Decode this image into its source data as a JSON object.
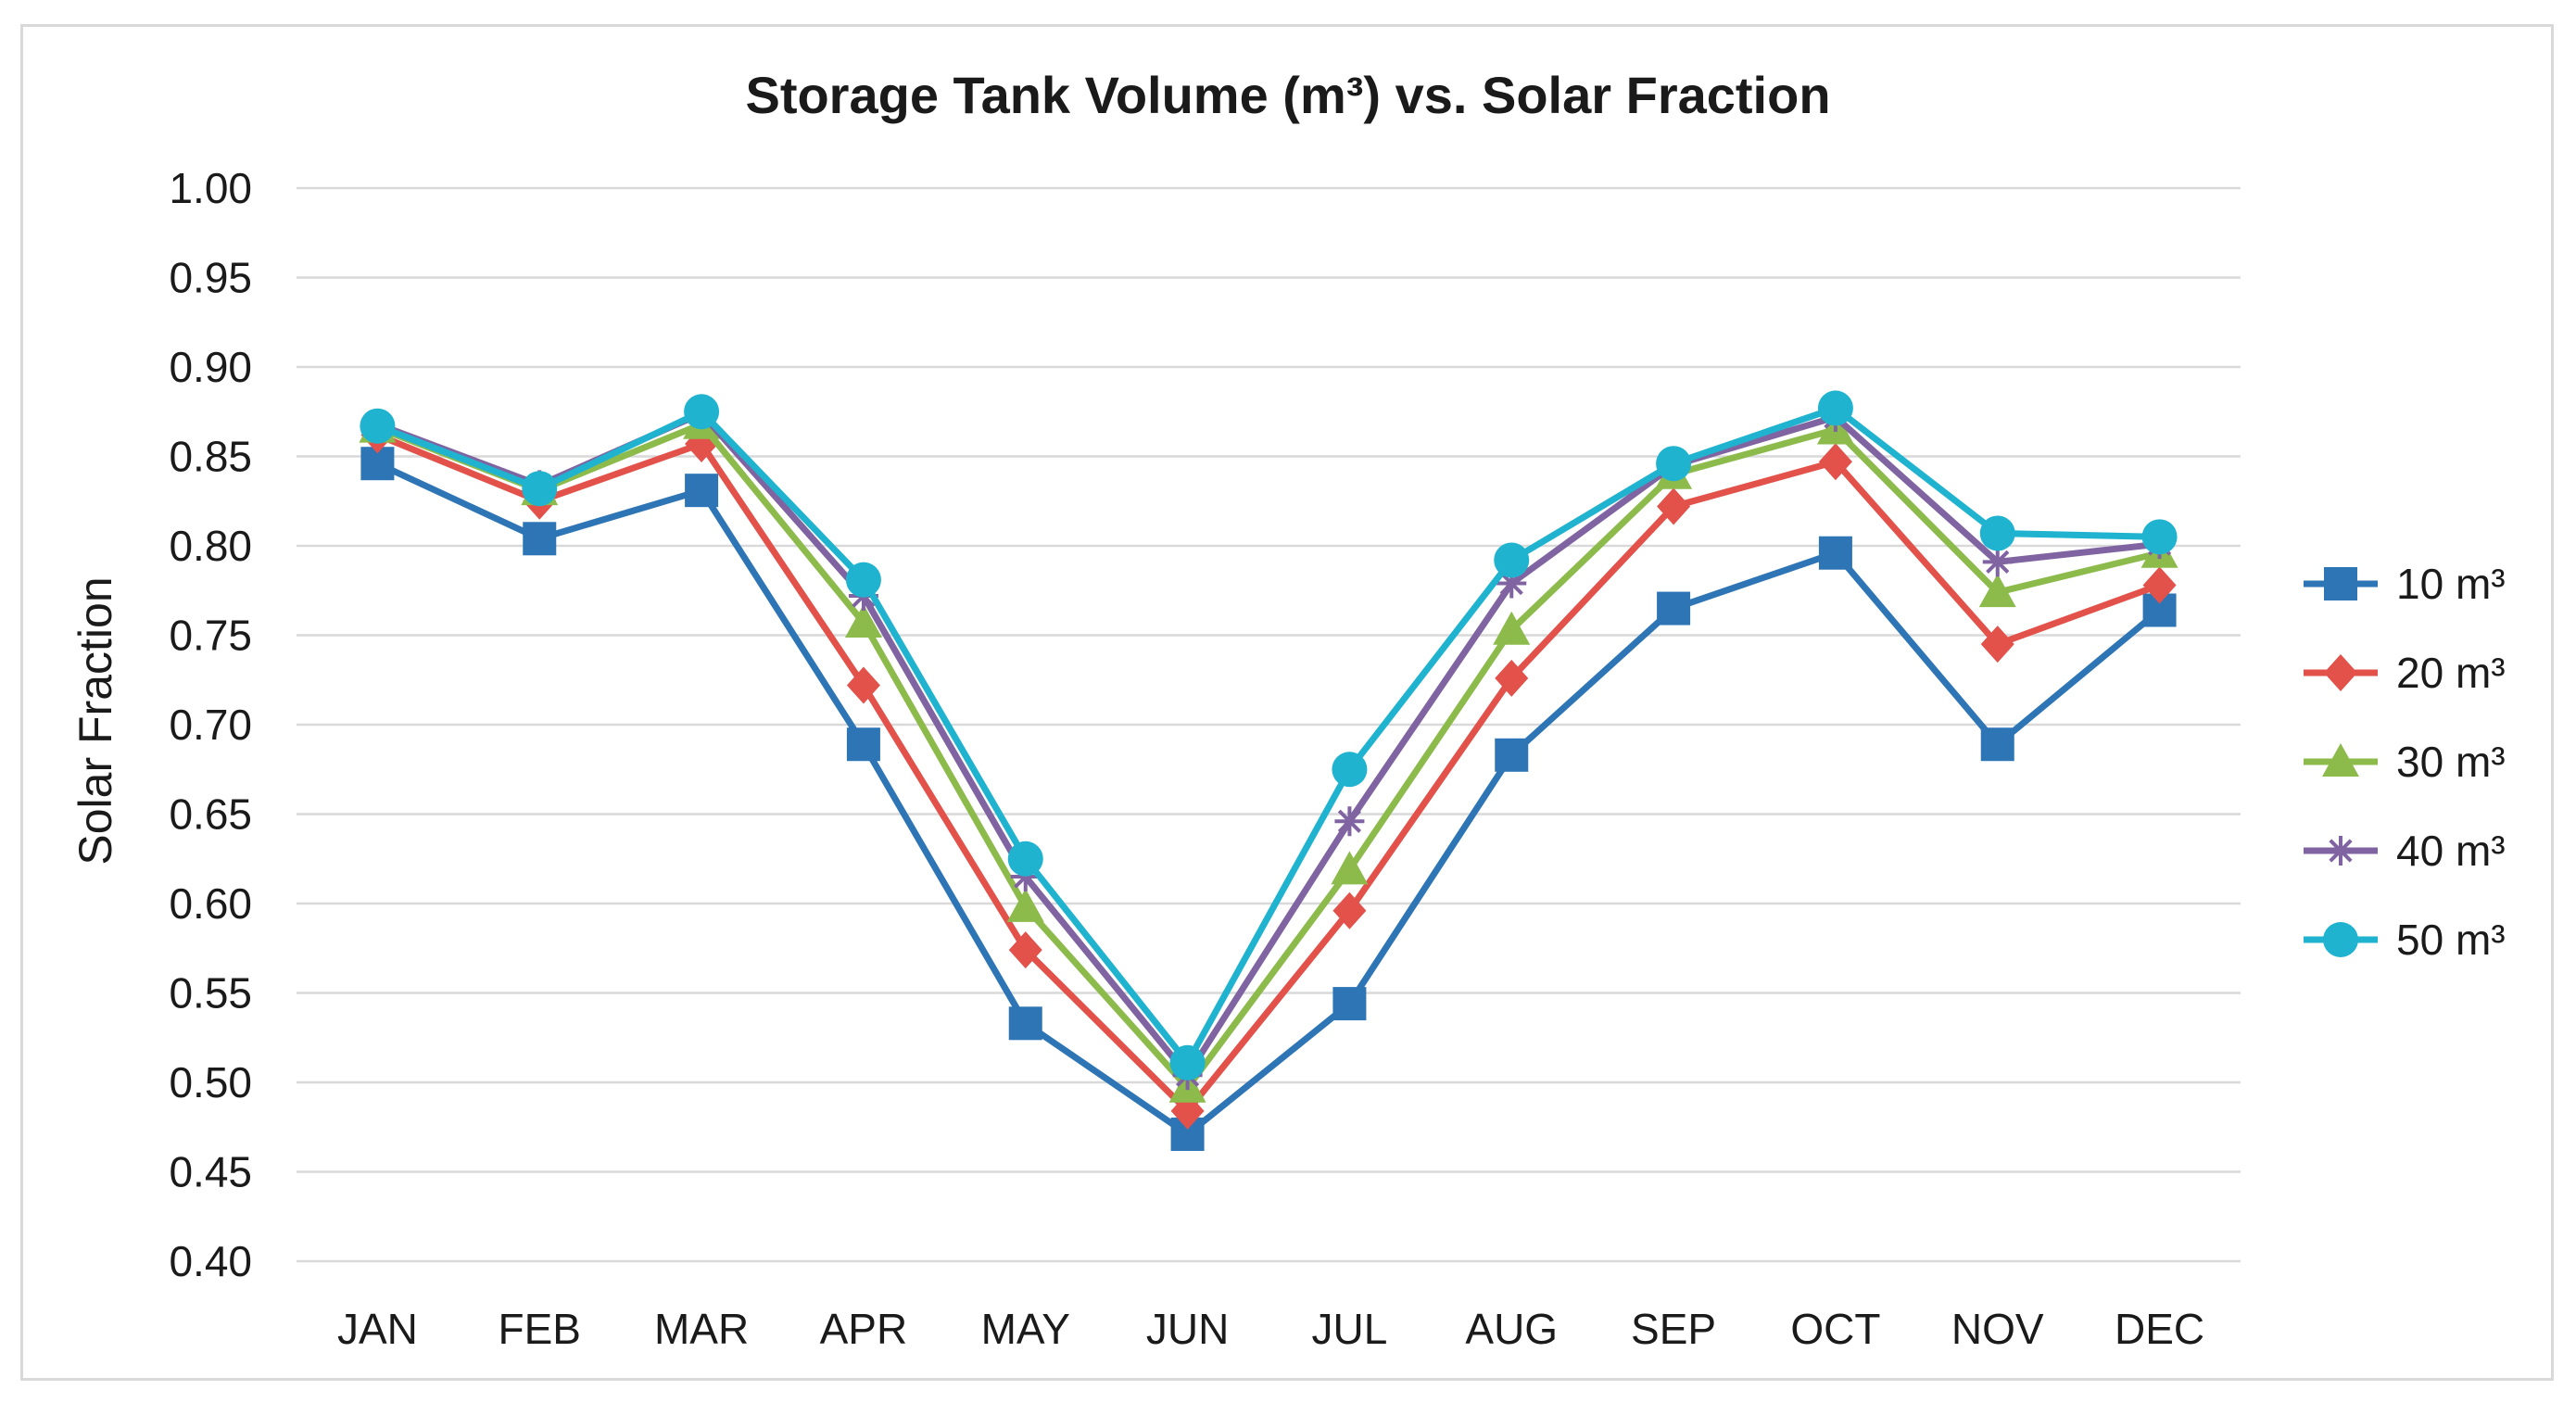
{
  "chart_data": {
    "type": "line",
    "title": "Storage Tank Volume (m³) vs. Solar Fraction",
    "ylabel": "Solar Fraction",
    "xlabel": "",
    "ylim": [
      0.4,
      1.0
    ],
    "yticks": [
      "0.40",
      "0.45",
      "0.50",
      "0.55",
      "0.60",
      "0.65",
      "0.70",
      "0.75",
      "0.80",
      "0.85",
      "0.90",
      "0.95",
      "1.00"
    ],
    "categories": [
      "JAN",
      "FEB",
      "MAR",
      "APR",
      "MAY",
      "JUN",
      "JUL",
      "AUG",
      "SEP",
      "OCT",
      "NOV",
      "DEC"
    ],
    "grid": true,
    "legend_position": "right",
    "series": [
      {
        "name": "10 m³",
        "color": "#2e75b6",
        "marker": "square",
        "values": [
          0.846,
          0.804,
          0.831,
          0.689,
          0.533,
          0.471,
          0.544,
          0.683,
          0.765,
          0.796,
          0.689,
          0.764
        ]
      },
      {
        "name": "20 m³",
        "color": "#e2524a",
        "marker": "diamond",
        "values": [
          0.862,
          0.825,
          0.857,
          0.722,
          0.574,
          0.484,
          0.596,
          0.726,
          0.822,
          0.847,
          0.745,
          0.778
        ]
      },
      {
        "name": "30 m³",
        "color": "#8cbb4c",
        "marker": "triangle",
        "values": [
          0.866,
          0.831,
          0.868,
          0.757,
          0.598,
          0.497,
          0.619,
          0.753,
          0.84,
          0.865,
          0.774,
          0.796
        ]
      },
      {
        "name": "40 m³",
        "color": "#8064a2",
        "marker": "star",
        "values": [
          0.868,
          0.834,
          0.874,
          0.772,
          0.615,
          0.504,
          0.646,
          0.779,
          0.845,
          0.872,
          0.791,
          0.801
        ]
      },
      {
        "name": "50 m³",
        "color": "#1fb3cf",
        "marker": "circle",
        "values": [
          0.867,
          0.832,
          0.875,
          0.781,
          0.625,
          0.511,
          0.675,
          0.792,
          0.846,
          0.877,
          0.807,
          0.805
        ]
      }
    ]
  }
}
